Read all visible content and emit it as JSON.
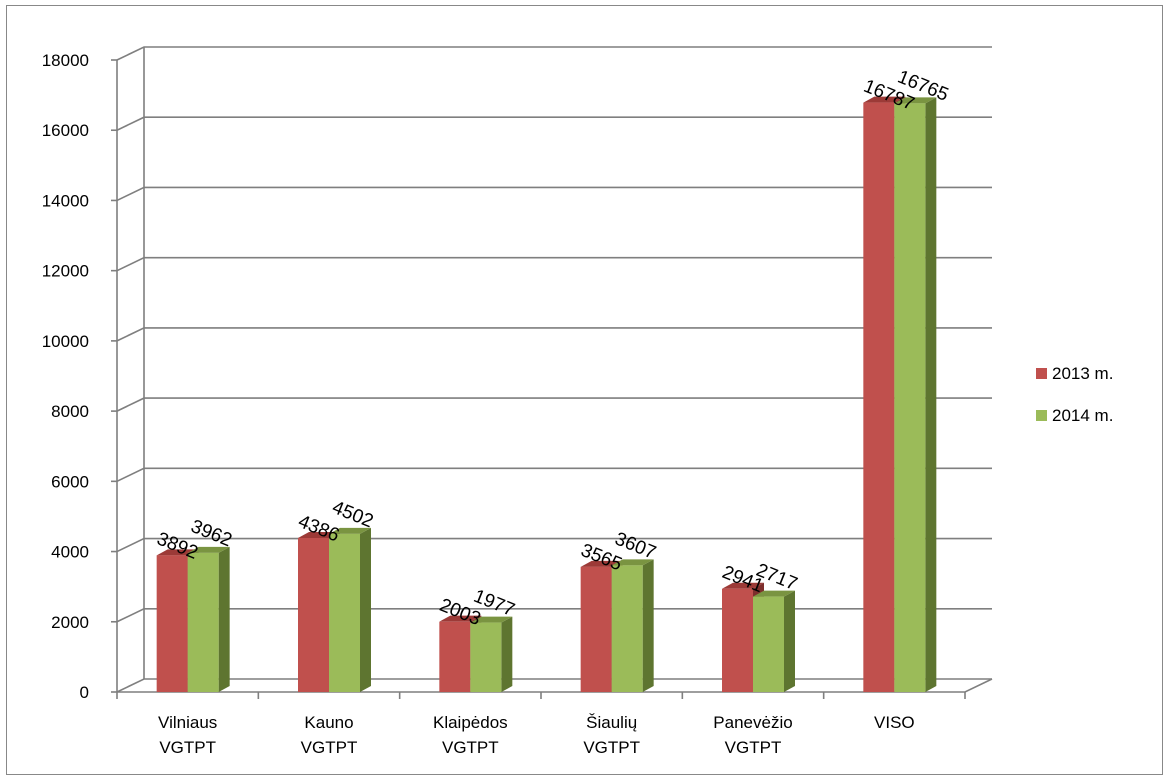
{
  "chart_data": {
    "type": "bar",
    "categories": [
      [
        "Vilniaus",
        "VGTPT"
      ],
      [
        "Kauno",
        "VGTPT"
      ],
      [
        "Klaipėdos",
        "VGTPT"
      ],
      [
        "Šiaulių",
        "VGTPT"
      ],
      [
        "Panevėžio",
        "VGTPT"
      ],
      [
        "VISO"
      ]
    ],
    "series": [
      {
        "name": "2013 m.",
        "values": [
          3892,
          4386,
          2003,
          3565,
          2941,
          16787
        ]
      },
      {
        "name": "2014 m.",
        "values": [
          3962,
          4502,
          1977,
          3607,
          2717,
          16765
        ]
      }
    ],
    "ylim": [
      0,
      18000
    ],
    "yticks": [
      "0",
      "2000",
      "4000",
      "6000",
      "8000",
      "10000",
      "12000",
      "14000",
      "16000",
      "18000"
    ],
    "grid": true,
    "legend": "right",
    "colors": {
      "series_front": [
        "#c0504d",
        "#9bbb59"
      ],
      "series_side": [
        "#7d2e2c",
        "#5e7530"
      ],
      "series_top": [
        "#9c3a37",
        "#7a9441"
      ],
      "grid": "#7f7f7f"
    }
  }
}
